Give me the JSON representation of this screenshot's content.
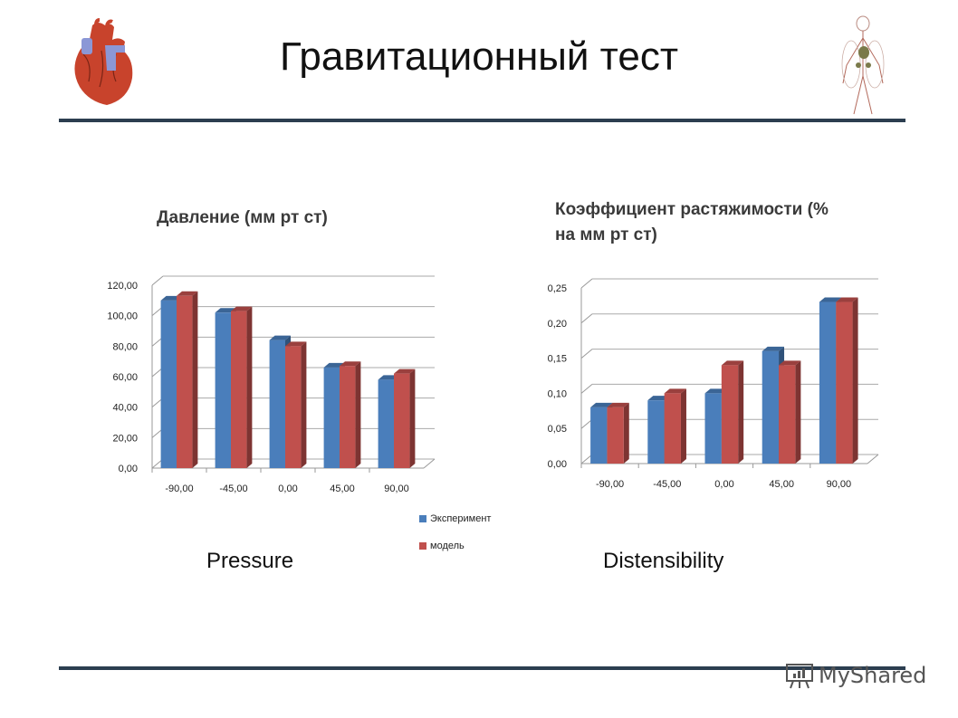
{
  "slide": {
    "title": "Гравитационный тест",
    "captions": {
      "left": "Pressure",
      "right": "Distensibility"
    },
    "watermark": "MyShared",
    "icons": {
      "left": "heart-anatomy-image",
      "right": "circulatory-system-image"
    },
    "colors": {
      "rule": "#2c3e50",
      "series_experiment": "#4a7ebb",
      "series_model": "#c0504d"
    }
  },
  "legend": [
    {
      "label": "Эксперимент",
      "color": "#4a7ebb"
    },
    {
      "label": "модель",
      "color": "#c0504d"
    }
  ],
  "chart_data": [
    {
      "type": "bar",
      "title": "Давление (мм рт ст)",
      "xlabel": "",
      "ylabel": "",
      "categories": [
        "-90,00",
        "-45,00",
        "0,00",
        "45,00",
        "90,00"
      ],
      "series": [
        {
          "name": "Эксперимент",
          "values": [
            110,
            102,
            84,
            66,
            58
          ]
        },
        {
          "name": "модель",
          "values": [
            113,
            103,
            80,
            67,
            62
          ]
        }
      ],
      "yticks": [
        "0,00",
        "20,00",
        "40,00",
        "60,00",
        "80,00",
        "100,00",
        "120,00"
      ],
      "ylim": [
        0,
        120
      ],
      "grid": true,
      "legend_position": "right-bottom",
      "style": "3d-clustered-column"
    },
    {
      "type": "bar",
      "title": "Коэффициент растяжимости (% на мм рт ст)",
      "xlabel": "",
      "ylabel": "",
      "categories": [
        "-90,00",
        "-45,00",
        "0,00",
        "45,00",
        "90,00"
      ],
      "series": [
        {
          "name": "Эксперимент",
          "values": [
            0.08,
            0.09,
            0.1,
            0.16,
            0.23
          ]
        },
        {
          "name": "модель",
          "values": [
            0.08,
            0.1,
            0.14,
            0.14,
            0.23
          ]
        }
      ],
      "yticks": [
        "0,00",
        "0,05",
        "0,10",
        "0,15",
        "0,20",
        "0,25"
      ],
      "ylim": [
        0,
        0.25
      ],
      "grid": true,
      "legend_position": "none",
      "style": "3d-clustered-column"
    }
  ]
}
